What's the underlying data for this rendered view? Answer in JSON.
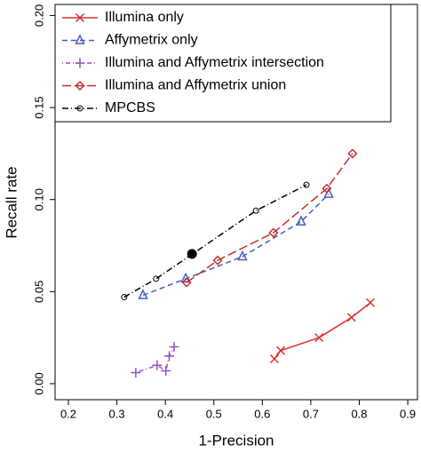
{
  "chart_data": {
    "type": "line",
    "x_label": "1-Precision",
    "y_label": "Recall rate",
    "xlim": [
      0.1725,
      0.92
    ],
    "ylim": [
      -0.0087,
      0.206
    ],
    "xticks": [
      0.2,
      0.3,
      0.4,
      0.5,
      0.6,
      0.7,
      0.8,
      0.9
    ],
    "yticks": [
      {
        "value": 0,
        "label": "0.00"
      },
      {
        "value": 0.05,
        "label": "0.05"
      },
      {
        "value": 0.1,
        "label": "0.10"
      },
      {
        "value": 0.15,
        "label": "0.15"
      },
      {
        "value": 0.2,
        "label": "0.20"
      }
    ],
    "legend": "top-left",
    "series": [
      {
        "name": "Illumina only",
        "color": "#e0302a",
        "linestyle": "solid",
        "marker": "x",
        "x": [
          0.625,
          0.638,
          0.717,
          0.784,
          0.823
        ],
        "values": [
          0.0135,
          0.018,
          0.025,
          0.036,
          0.044
        ]
      },
      {
        "name": "Affymetrix only",
        "color": "#4a5bc4",
        "linestyle": "dashed",
        "marker": "triangle",
        "x": [
          0.354,
          0.442,
          0.559,
          0.68,
          0.737
        ],
        "values": [
          0.048,
          0.057,
          0.069,
          0.088,
          0.103
        ]
      },
      {
        "name": "Illumina and Affymetrix intersection",
        "color": "#9b4fc4",
        "linestyle": "dotdash",
        "marker": "plus",
        "x": [
          0.339,
          0.383,
          0.401,
          0.408,
          0.418
        ],
        "values": [
          0.006,
          0.01,
          0.007,
          0.015,
          0.02
        ]
      },
      {
        "name": "Illumina and Affymetrix union",
        "color": "#c0302a",
        "linestyle": "longdash",
        "marker": "diamond",
        "x": [
          0.444,
          0.508,
          0.623,
          0.733,
          0.786
        ],
        "values": [
          0.055,
          0.067,
          0.082,
          0.106,
          0.125
        ]
      },
      {
        "name": "MPCBS",
        "color": "#000000",
        "linestyle": "dashdot",
        "marker": "circle",
        "x": [
          0.315,
          0.381,
          0.587,
          0.691
        ],
        "values": [
          0.047,
          0.057,
          0.094,
          0.108
        ]
      }
    ],
    "highlight_point": {
      "x": 0.455,
      "y": 0.0705,
      "color": "#000000"
    }
  }
}
